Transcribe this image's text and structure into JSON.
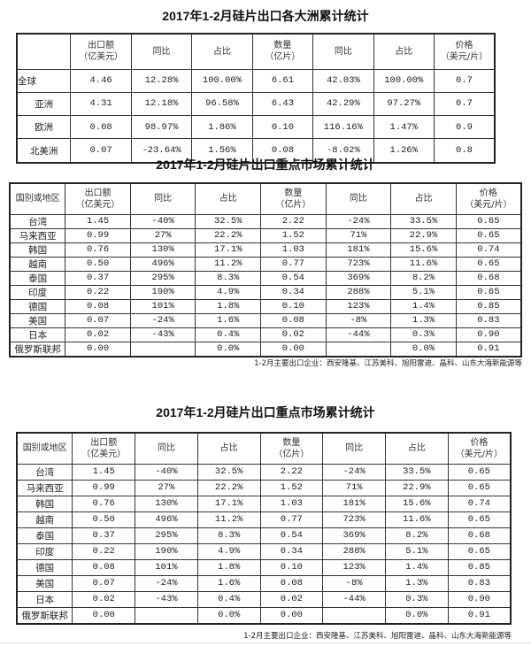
{
  "tables": [
    {
      "title": "2017年1-2月硅片出口各大洲累计统计",
      "headers": [
        "",
        "出口额\n（亿美元）",
        "同比",
        "占比",
        "数量\n（亿片）",
        "同比",
        "占比",
        "价格\n（美元/片）"
      ],
      "rows": [
        [
          "全球",
          "4.46",
          "12.28%",
          "100.00%",
          "6.61",
          "42.03%",
          "100.00%",
          "0.7"
        ],
        [
          "亚洲",
          "4.31",
          "12.18%",
          "96.58%",
          "6.43",
          "42.29%",
          "97.27%",
          "0.7"
        ],
        [
          "欧洲",
          "0.08",
          "98.97%",
          "1.86%",
          "0.10",
          "116.16%",
          "1.47%",
          "0.9"
        ],
        [
          "北美洲",
          "0.07",
          "-23.64%",
          "1.56%",
          "0.08",
          "-8.02%",
          "1.26%",
          "0.8"
        ]
      ],
      "footnote": ""
    },
    {
      "title": "2017年1-2月硅片出口重点市场累计统计",
      "headers": [
        "国别或地区",
        "出口额\n（亿美元）",
        "同比",
        "占比",
        "数量\n（亿片）",
        "同比",
        "占比",
        "价格\n（美元/片）"
      ],
      "rows": [
        [
          "台湾",
          "1.45",
          "-40%",
          "32.5%",
          "2.22",
          "-24%",
          "33.5%",
          "0.65"
        ],
        [
          "马来西亚",
          "0.99",
          "27%",
          "22.2%",
          "1.52",
          "71%",
          "22.9%",
          "0.65"
        ],
        [
          "韩国",
          "0.76",
          "130%",
          "17.1%",
          "1.03",
          "181%",
          "15.6%",
          "0.74"
        ],
        [
          "越南",
          "0.50",
          "496%",
          "11.2%",
          "0.77",
          "723%",
          "11.6%",
          "0.65"
        ],
        [
          "泰国",
          "0.37",
          "295%",
          "8.3%",
          "0.54",
          "369%",
          "8.2%",
          "0.68"
        ],
        [
          "印度",
          "0.22",
          "190%",
          "4.9%",
          "0.34",
          "288%",
          "5.1%",
          "0.65"
        ],
        [
          "德国",
          "0.08",
          "101%",
          "1.8%",
          "0.10",
          "123%",
          "1.4%",
          "0.85"
        ],
        [
          "美国",
          "0.07",
          "-24%",
          "1.6%",
          "0.08",
          "-8%",
          "1.3%",
          "0.83"
        ],
        [
          "日本",
          "0.02",
          "-43%",
          "0.4%",
          "0.02",
          "-44%",
          "0.3%",
          "0.90"
        ],
        [
          "俄罗斯联邦",
          "0.00",
          "",
          "0.0%",
          "0.00",
          "",
          "0.0%",
          "0.91"
        ]
      ],
      "footnote": "1-2月主要出口企业：西安隆基、江苏美科、旭阳雷迪、晶科、山东大海新能源等"
    },
    {
      "title": "2017年1-2月硅片出口重点市场累计统计",
      "headers": [
        "国别或地区",
        "出口额\n（亿美元）",
        "同比",
        "占比",
        "数量\n（亿片）",
        "同比",
        "占比",
        "价格\n（美元/片）"
      ],
      "rows": [
        [
          "台湾",
          "1.45",
          "-40%",
          "32.5%",
          "2.22",
          "-24%",
          "33.5%",
          "0.65"
        ],
        [
          "马来西亚",
          "0.99",
          "27%",
          "22.2%",
          "1.52",
          "71%",
          "22.9%",
          "0.65"
        ],
        [
          "韩国",
          "0.76",
          "130%",
          "17.1%",
          "1.03",
          "181%",
          "15.6%",
          "0.74"
        ],
        [
          "越南",
          "0.50",
          "496%",
          "11.2%",
          "0.77",
          "723%",
          "11.6%",
          "0.65"
        ],
        [
          "泰国",
          "0.37",
          "295%",
          "8.3%",
          "0.54",
          "369%",
          "8.2%",
          "0.68"
        ],
        [
          "印度",
          "0.22",
          "190%",
          "4.9%",
          "0.34",
          "288%",
          "5.1%",
          "0.65"
        ],
        [
          "德国",
          "0.08",
          "101%",
          "1.8%",
          "0.10",
          "123%",
          "1.4%",
          "0.85"
        ],
        [
          "美国",
          "0.07",
          "-24%",
          "1.6%",
          "0.08",
          "-8%",
          "1.3%",
          "0.83"
        ],
        [
          "日本",
          "0.02",
          "-43%",
          "0.4%",
          "0.02",
          "-44%",
          "0.3%",
          "0.90"
        ],
        [
          "俄罗斯联邦",
          "0.00",
          "",
          "0.0%",
          "0.00",
          "",
          "0.0%",
          "0.91"
        ]
      ],
      "footnote": "1-2月主要出口企业：西安隆基、江苏美科、旭阳雷迪、晶科、山东大海新能源等"
    }
  ]
}
